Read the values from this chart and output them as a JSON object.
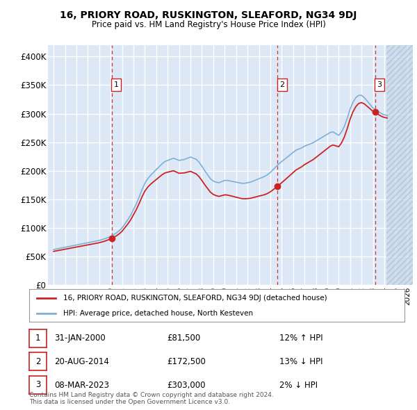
{
  "title": "16, PRIORY ROAD, RUSKINGTON, SLEAFORD, NG34 9DJ",
  "subtitle": "Price paid vs. HM Land Registry's House Price Index (HPI)",
  "ylim": [
    0,
    420000
  ],
  "yticks": [
    0,
    50000,
    100000,
    150000,
    200000,
    250000,
    300000,
    350000,
    400000
  ],
  "ytick_labels": [
    "£0",
    "£50K",
    "£100K",
    "£150K",
    "£200K",
    "£250K",
    "£300K",
    "£350K",
    "£400K"
  ],
  "plot_bg_color": "#dce8f5",
  "grid_color": "#ffffff",
  "hpi_line_color": "#7db0d5",
  "price_line_color": "#cc2222",
  "marker_color": "#cc2222",
  "sale_marker_size": 7,
  "transactions": [
    {
      "label": "1",
      "date_year": 2000.08,
      "price": 81500
    },
    {
      "label": "2",
      "date_year": 2014.64,
      "price": 172500
    },
    {
      "label": "3",
      "date_year": 2023.18,
      "price": 303000
    }
  ],
  "vline_color": "#cc3333",
  "legend_label_price": "16, PRIORY ROAD, RUSKINGTON, SLEAFORD, NG34 9DJ (detached house)",
  "legend_label_hpi": "HPI: Average price, detached house, North Kesteven",
  "table_rows": [
    {
      "num": "1",
      "date": "31-JAN-2000",
      "price": "£81,500",
      "hpi_change": "12% ↑ HPI"
    },
    {
      "num": "2",
      "date": "20-AUG-2014",
      "price": "£172,500",
      "hpi_change": "13% ↓ HPI"
    },
    {
      "num": "3",
      "date": "08-MAR-2023",
      "price": "£303,000",
      "hpi_change": "2% ↓ HPI"
    }
  ],
  "footer": "Contains HM Land Registry data © Crown copyright and database right 2024.\nThis data is licensed under the Open Government Licence v3.0.",
  "future_shade_start_year": 2024.17,
  "xlim_start": 1994.5,
  "xlim_end": 2026.5,
  "hpi_years": [
    1995,
    1995.25,
    1995.5,
    1995.75,
    1996,
    1996.25,
    1996.5,
    1996.75,
    1997,
    1997.25,
    1997.5,
    1997.75,
    1998,
    1998.25,
    1998.5,
    1998.75,
    1999,
    1999.25,
    1999.5,
    1999.75,
    2000,
    2000.25,
    2000.5,
    2000.75,
    2001,
    2001.25,
    2001.5,
    2001.75,
    2002,
    2002.25,
    2002.5,
    2002.75,
    2003,
    2003.25,
    2003.5,
    2003.75,
    2004,
    2004.25,
    2004.5,
    2004.75,
    2005,
    2005.25,
    2005.5,
    2005.75,
    2006,
    2006.25,
    2006.5,
    2006.75,
    2007,
    2007.25,
    2007.5,
    2007.75,
    2008,
    2008.25,
    2008.5,
    2008.75,
    2009,
    2009.25,
    2009.5,
    2009.75,
    2010,
    2010.25,
    2010.5,
    2010.75,
    2011,
    2011.25,
    2011.5,
    2011.75,
    2012,
    2012.25,
    2012.5,
    2012.75,
    2013,
    2013.25,
    2013.5,
    2013.75,
    2014,
    2014.25,
    2014.5,
    2014.75,
    2015,
    2015.25,
    2015.5,
    2015.75,
    2016,
    2016.25,
    2016.5,
    2016.75,
    2017,
    2017.25,
    2017.5,
    2017.75,
    2018,
    2018.25,
    2018.5,
    2018.75,
    2019,
    2019.25,
    2019.5,
    2019.75,
    2020,
    2020.25,
    2020.5,
    2020.75,
    2021,
    2021.25,
    2021.5,
    2021.75,
    2022,
    2022.25,
    2022.5,
    2022.75,
    2023,
    2023.25,
    2023.5,
    2023.75,
    2024,
    2024.25
  ],
  "hpi_values": [
    62000,
    63000,
    64000,
    65000,
    66000,
    67000,
    68000,
    69000,
    70000,
    71000,
    72000,
    73000,
    74000,
    75000,
    76000,
    77000,
    78000,
    79500,
    81000,
    83000,
    85000,
    88000,
    91000,
    95000,
    100000,
    107000,
    114000,
    122000,
    132000,
    142000,
    154000,
    167000,
    178000,
    186000,
    192000,
    197000,
    202000,
    207000,
    212000,
    216000,
    218000,
    220000,
    222000,
    220000,
    218000,
    219000,
    220000,
    222000,
    224000,
    222000,
    220000,
    215000,
    208000,
    200000,
    193000,
    186000,
    182000,
    180000,
    179000,
    181000,
    183000,
    183000,
    182000,
    181000,
    180000,
    179000,
    178000,
    178000,
    179000,
    180000,
    182000,
    184000,
    186000,
    188000,
    190000,
    193000,
    197000,
    202000,
    207000,
    212000,
    216000,
    220000,
    224000,
    228000,
    232000,
    236000,
    238000,
    240000,
    243000,
    245000,
    247000,
    249000,
    252000,
    255000,
    258000,
    261000,
    264000,
    267000,
    268000,
    265000,
    262000,
    268000,
    278000,
    292000,
    308000,
    320000,
    328000,
    332000,
    332000,
    328000,
    322000,
    316000,
    310000,
    307000,
    303000,
    300000,
    298000,
    297000
  ]
}
